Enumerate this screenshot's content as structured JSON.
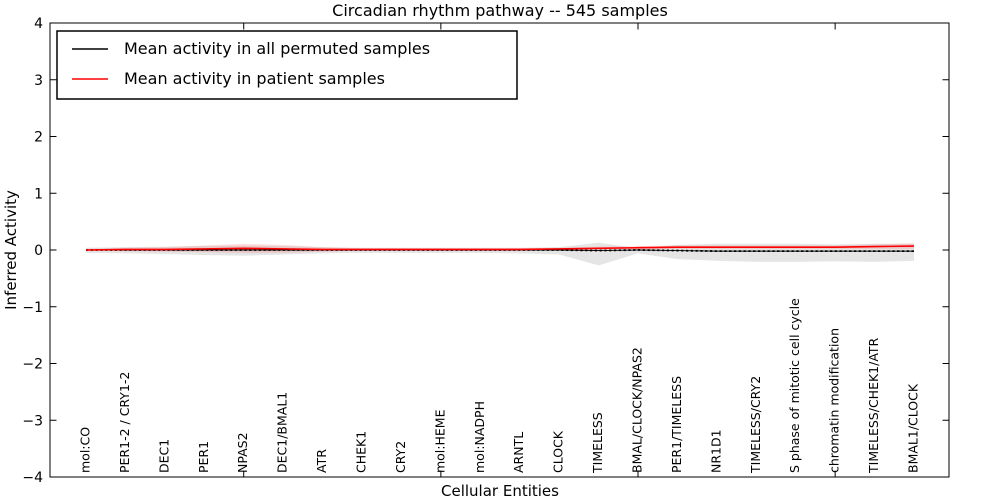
{
  "chart_data": {
    "type": "line",
    "title": "Circadian rhythm pathway -- 545 samples",
    "xlabel": "Cellular Entities",
    "ylabel": "Inferred Activity",
    "ylim": [
      -4,
      4
    ],
    "xlim_values": [
      1,
      22
    ],
    "grid": false,
    "yticks": [
      -4,
      -3,
      -2,
      -1,
      0,
      1,
      2,
      3,
      4
    ],
    "ytick_labels": [
      "−4",
      "−3",
      "−2",
      "−1",
      "0",
      "1",
      "2",
      "3",
      "4"
    ],
    "xticks_major_values": [
      5,
      10,
      15,
      20
    ],
    "categories": [
      "mol:CO",
      "PER1-2 / CRY1-2",
      "DEC1",
      "PER1",
      "NPAS2",
      "DEC1/BMAL1",
      "ATR",
      "CHEK1",
      "CRY2",
      "mol:HEME",
      "mol:NADPH",
      "ARNTL",
      "CLOCK",
      "TIMELESS",
      "BMAL/CLOCK/NPAS2",
      "PER1/TIMELESS",
      "NR1D1",
      "TIMELESS/CRY2",
      "S phase of mitotic cell cycle",
      "chromatin modification",
      "TIMELESS/CHEK1/ATR",
      "BMAL1/CLOCK"
    ],
    "series": [
      {
        "name": "Mean activity in all permuted samples",
        "color": "#000000",
        "style": "dashed",
        "values": [
          0,
          0,
          0,
          0,
          0,
          0,
          0,
          0,
          0,
          0,
          0,
          0,
          0,
          -0.01,
          0,
          -0.01,
          -0.02,
          -0.02,
          -0.02,
          -0.02,
          -0.02,
          -0.02
        ]
      },
      {
        "name": "Mean activity in patient samples",
        "color": "#ff0000",
        "style": "solid",
        "values": [
          0,
          0.01,
          0.01,
          0.02,
          0.03,
          0.02,
          0.01,
          0.01,
          0.01,
          0.01,
          0.01,
          0.01,
          0.02,
          0.03,
          0.04,
          0.05,
          0.05,
          0.05,
          0.05,
          0.05,
          0.06,
          0.07
        ]
      }
    ],
    "bands": [
      {
        "name": "permuted-samples-range",
        "color": "#bdbdbd",
        "opacity": 0.4,
        "upper": [
          0.04,
          0.05,
          0.06,
          0.07,
          0.08,
          0.07,
          0.05,
          0.04,
          0.04,
          0.04,
          0.04,
          0.04,
          0.05,
          0.13,
          0.03,
          0.09,
          0.11,
          0.11,
          0.11,
          0.1,
          0.11,
          0.11
        ],
        "lower": [
          -0.05,
          -0.06,
          -0.07,
          -0.09,
          -0.1,
          -0.08,
          -0.06,
          -0.05,
          -0.05,
          -0.05,
          -0.05,
          -0.06,
          -0.08,
          -0.27,
          -0.06,
          -0.16,
          -0.19,
          -0.21,
          -0.21,
          -0.2,
          -0.21,
          -0.19
        ]
      },
      {
        "name": "patient-samples-range",
        "color": "#ff0000",
        "opacity": 0.12,
        "upper": [
          0.02,
          0.04,
          0.05,
          0.08,
          0.11,
          0.09,
          0.05,
          0.03,
          0.03,
          0.03,
          0.03,
          0.03,
          0.04,
          0.06,
          0.07,
          0.08,
          0.08,
          0.08,
          0.08,
          0.08,
          0.1,
          0.12
        ],
        "lower": [
          -0.02,
          -0.02,
          -0.03,
          -0.04,
          -0.05,
          -0.05,
          -0.03,
          -0.01,
          -0.01,
          -0.01,
          -0.01,
          -0.01,
          0.0,
          0.0,
          0.01,
          0.02,
          0.02,
          0.02,
          0.02,
          0.02,
          0.02,
          0.02
        ]
      }
    ],
    "legend": {
      "position": "upper-left",
      "entries": [
        {
          "label": "Mean activity in all permuted samples",
          "color": "#000000"
        },
        {
          "label": "Mean activity in patient samples",
          "color": "#ff0000"
        }
      ]
    }
  }
}
